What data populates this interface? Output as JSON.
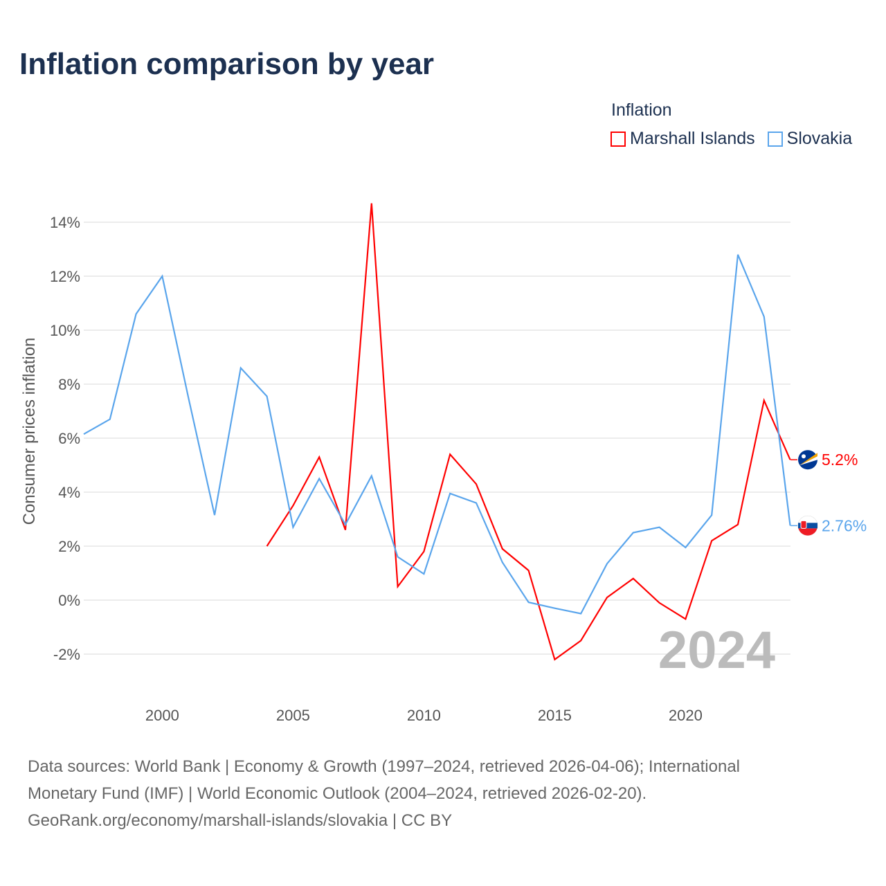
{
  "title": "Inflation comparison by year",
  "legend": {
    "title": "Inflation",
    "items": [
      {
        "label": "Marshall Islands",
        "color": "#ff0000"
      },
      {
        "label": "Slovakia",
        "color": "#5aa5ec"
      }
    ]
  },
  "year_watermark": "2024",
  "footer": {
    "line1": "Data sources: World Bank | Economy & Growth (1997–2024, retrieved 2026-04-06); International",
    "line2": "Monetary Fund (IMF) | World Economic Outlook (2004–2024, retrieved 2026-02-20).",
    "line3": "GeoRank.org/economy/marshall-islands/slovakia | CC BY"
  },
  "chart_data": {
    "type": "line",
    "title": "Inflation comparison by year",
    "xlabel": "",
    "ylabel": "Consumer prices inflation",
    "xlim": [
      1997,
      2024
    ],
    "ylim": [
      -3,
      15
    ],
    "xticks": [
      2000,
      2005,
      2010,
      2015,
      2020
    ],
    "yticks": [
      -2,
      0,
      2,
      4,
      6,
      8,
      10,
      12,
      14
    ],
    "ytick_labels": [
      "-2%",
      "0%",
      "2%",
      "4%",
      "6%",
      "8%",
      "10%",
      "12%",
      "14%"
    ],
    "grid": true,
    "legend_position": "top-right",
    "series": [
      {
        "name": "Marshall Islands",
        "color": "#ff0000",
        "end_label": "5.2%",
        "x": [
          2004,
          2005,
          2006,
          2007,
          2008,
          2009,
          2010,
          2011,
          2012,
          2013,
          2014,
          2015,
          2016,
          2017,
          2018,
          2019,
          2020,
          2021,
          2022,
          2023,
          2024
        ],
        "values": [
          2.0,
          3.5,
          5.3,
          2.6,
          14.7,
          0.5,
          1.8,
          5.4,
          4.3,
          1.9,
          1.1,
          -2.2,
          -1.5,
          0.1,
          0.8,
          -0.1,
          -0.7,
          2.2,
          2.8,
          7.4,
          5.2
        ]
      },
      {
        "name": "Slovakia",
        "color": "#5aa5ec",
        "end_label": "2.76%",
        "x": [
          1997,
          1998,
          1999,
          2000,
          2001,
          2002,
          2003,
          2004,
          2005,
          2006,
          2007,
          2008,
          2009,
          2010,
          2011,
          2012,
          2013,
          2014,
          2015,
          2016,
          2017,
          2018,
          2019,
          2020,
          2021,
          2022,
          2023,
          2024
        ],
        "values": [
          6.15,
          6.7,
          10.6,
          12.0,
          7.5,
          3.15,
          8.6,
          7.55,
          2.7,
          4.5,
          2.8,
          4.6,
          1.6,
          0.97,
          3.95,
          3.6,
          1.4,
          -0.08,
          -0.3,
          -0.5,
          1.35,
          2.5,
          2.7,
          1.95,
          3.15,
          12.8,
          10.5,
          2.76
        ]
      }
    ]
  }
}
